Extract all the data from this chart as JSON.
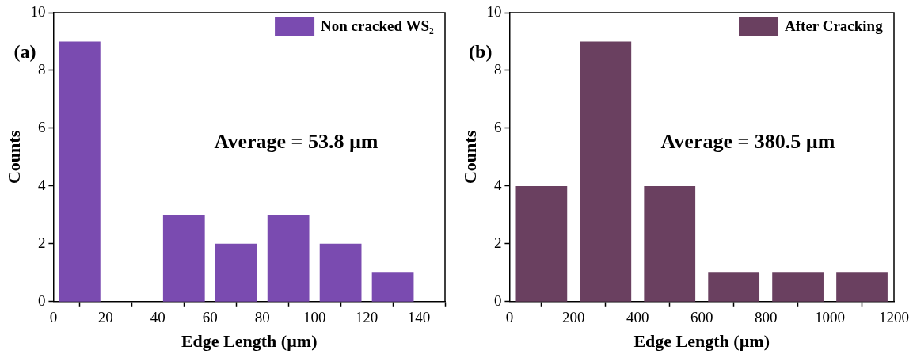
{
  "chart_data": [
    {
      "type": "bar",
      "title": "(a)",
      "xlabel": "Edge Length (µm)",
      "ylabel": "Counts",
      "x": [
        10,
        30,
        50,
        70,
        90,
        110,
        130
      ],
      "series": [
        {
          "name": "Non cracked WS₂",
          "color": "#7a4bb0",
          "values": [
            9,
            0,
            3,
            2,
            3,
            2,
            1
          ]
        }
      ],
      "xlim": [
        0,
        150
      ],
      "xticks": [
        0,
        20,
        40,
        60,
        80,
        100,
        120,
        140
      ],
      "ylim": [
        0,
        10
      ],
      "yticks": [
        0,
        2,
        4,
        6,
        8,
        10
      ],
      "annotations": [
        "Average = 53.8 µm"
      ],
      "legend": "top right",
      "grid": false
    },
    {
      "type": "bar",
      "title": "(b)",
      "xlabel": "Edge Length (µm)",
      "ylabel": "Counts",
      "x": [
        100,
        300,
        500,
        700,
        900,
        1100
      ],
      "series": [
        {
          "name": "After Cracking",
          "color": "#6a4060",
          "values": [
            4,
            9,
            4,
            1,
            1,
            1
          ]
        }
      ],
      "xlim": [
        0,
        1200
      ],
      "xticks": [
        0,
        200,
        400,
        600,
        800,
        1000,
        1200
      ],
      "ylim": [
        0,
        10
      ],
      "yticks": [
        0,
        2,
        4,
        6,
        8,
        10
      ],
      "annotations": [
        "Average = 380.5 µm"
      ],
      "legend": "top right",
      "grid": false
    }
  ]
}
